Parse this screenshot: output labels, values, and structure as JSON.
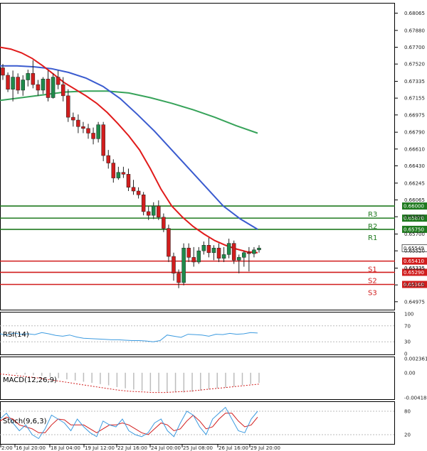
{
  "chart_data": {
    "type": "candlestick",
    "main": {
      "y_ticks": [
        "0.68065",
        "0.67880",
        "0.67700",
        "0.67520",
        "0.67335",
        "0.67155",
        "0.66975",
        "0.66790",
        "0.66610",
        "0.66430",
        "0.66245",
        "0.66065",
        "0.65885",
        "0.65700",
        "0.65520",
        "0.65335",
        "0.65155",
        "0.64975"
      ],
      "current_price": "0.65549",
      "ylim": [
        0.6489,
        0.6816
      ],
      "candles": [
        [
          0.6748,
          0.6752,
          0.6735,
          0.674
        ],
        [
          0.674,
          0.6743,
          0.6722,
          0.6725
        ],
        [
          0.6725,
          0.6745,
          0.6712,
          0.6738
        ],
        [
          0.6738,
          0.6742,
          0.672,
          0.6724
        ],
        [
          0.6724,
          0.674,
          0.6718,
          0.6735
        ],
        [
          0.6735,
          0.6746,
          0.6728,
          0.6742
        ],
        [
          0.6742,
          0.6756,
          0.6726,
          0.673
        ],
        [
          0.673,
          0.6735,
          0.6718,
          0.6724
        ],
        [
          0.6724,
          0.6738,
          0.672,
          0.6736
        ],
        [
          0.6736,
          0.6745,
          0.6712,
          0.6716
        ],
        [
          0.6716,
          0.6742,
          0.6715,
          0.6738
        ],
        [
          0.6738,
          0.6745,
          0.6725,
          0.673
        ],
        [
          0.673,
          0.6738,
          0.6712,
          0.6718
        ],
        [
          0.6718,
          0.6725,
          0.669,
          0.6695
        ],
        [
          0.6695,
          0.67,
          0.6685,
          0.6692
        ],
        [
          0.6692,
          0.6698,
          0.6678,
          0.6685
        ],
        [
          0.6685,
          0.669,
          0.6678,
          0.6683
        ],
        [
          0.6683,
          0.6688,
          0.6672,
          0.6678
        ],
        [
          0.6678,
          0.6684,
          0.6666,
          0.6672
        ],
        [
          0.6672,
          0.669,
          0.6668,
          0.6687
        ],
        [
          0.6687,
          0.669,
          0.6648,
          0.6654
        ],
        [
          0.6654,
          0.666,
          0.664,
          0.6646
        ],
        [
          0.6646,
          0.665,
          0.6625,
          0.663
        ],
        [
          0.663,
          0.6642,
          0.6628,
          0.6636
        ],
        [
          0.6636,
          0.6642,
          0.663,
          0.6634
        ],
        [
          0.6634,
          0.664,
          0.6616,
          0.662
        ],
        [
          0.662,
          0.6628,
          0.6612,
          0.6616
        ],
        [
          0.6616,
          0.662,
          0.6608,
          0.6612
        ],
        [
          0.6612,
          0.6615,
          0.659,
          0.6594
        ],
        [
          0.6594,
          0.66,
          0.6585,
          0.659
        ],
        [
          0.659,
          0.6604,
          0.6586,
          0.66
        ],
        [
          0.66,
          0.6606,
          0.6585,
          0.6588
        ],
        [
          0.6588,
          0.6592,
          0.6572,
          0.6576
        ],
        [
          0.6576,
          0.658,
          0.654,
          0.6546
        ],
        [
          0.6546,
          0.655,
          0.652,
          0.6528
        ],
        [
          0.6528,
          0.6532,
          0.6512,
          0.6518
        ],
        [
          0.6518,
          0.656,
          0.6515,
          0.6555
        ],
        [
          0.6555,
          0.656,
          0.654,
          0.6545
        ],
        [
          0.6545,
          0.6556,
          0.6535,
          0.654
        ],
        [
          0.654,
          0.6556,
          0.6538,
          0.6552
        ],
        [
          0.6552,
          0.6562,
          0.6548,
          0.6558
        ],
        [
          0.6558,
          0.6566,
          0.6545,
          0.655
        ],
        [
          0.655,
          0.6558,
          0.6542,
          0.6555
        ],
        [
          0.6555,
          0.656,
          0.654,
          0.6544
        ],
        [
          0.6544,
          0.6556,
          0.654,
          0.6548
        ],
        [
          0.6548,
          0.6565,
          0.6544,
          0.656
        ],
        [
          0.656,
          0.6563,
          0.6538,
          0.6542
        ],
        [
          0.6542,
          0.6548,
          0.6528,
          0.6545
        ],
        [
          0.6545,
          0.6552,
          0.6535,
          0.655
        ],
        [
          0.655,
          0.6556,
          0.653,
          0.6549
        ],
        [
          0.6549,
          0.6556,
          0.6545,
          0.6553
        ],
        [
          0.6553,
          0.6558,
          0.655,
          0.6555
        ]
      ],
      "ma_red": [
        0.677,
        0.6768,
        0.6764,
        0.6758,
        0.675,
        0.6741,
        0.6732,
        0.6725,
        0.6718,
        0.671,
        0.67,
        0.6688,
        0.6675,
        0.666,
        0.664,
        0.6618,
        0.66,
        0.6588,
        0.6578,
        0.657,
        0.6563,
        0.6558,
        0.6554,
        0.6551,
        0.655
      ],
      "ma_blue": [
        0.675,
        0.675,
        0.6749,
        0.6747,
        0.6743,
        0.6737,
        0.6728,
        0.6715,
        0.6698,
        0.668,
        0.666,
        0.664,
        0.662,
        0.66,
        0.6586,
        0.6575
      ],
      "ma_green": [
        0.6713,
        0.6716,
        0.6719,
        0.6722,
        0.6723,
        0.6723,
        0.6721,
        0.6716,
        0.671,
        0.6703,
        0.6695,
        0.6686,
        0.6678
      ],
      "levels": [
        {
          "name": "R3",
          "value": 0.66,
          "tag": "0.66000",
          "color": "#1f7a1f"
        },
        {
          "name": "R2",
          "value": 0.6587,
          "tag": "0.65870",
          "color": "#1f7a1f"
        },
        {
          "name": "R1",
          "value": 0.6575,
          "tag": "0.65750",
          "color": "#1f7a1f"
        },
        {
          "name": "S1",
          "value": 0.6541,
          "tag": "0.65410",
          "color": "#d11d1d"
        },
        {
          "name": "S2",
          "value": 0.6529,
          "tag": "0.65290",
          "color": "#d11d1d"
        },
        {
          "name": "S3",
          "value": 0.6516,
          "tag": "0.65160",
          "color": "#d11d1d"
        }
      ],
      "extra_tick": "0.65335"
    },
    "rsi": {
      "label": "RSI(14)",
      "ticks": [
        "100",
        "70",
        "30",
        "0"
      ],
      "values": [
        50,
        47,
        52,
        49,
        50,
        48,
        53,
        50,
        46,
        44,
        47,
        42,
        39,
        38,
        37,
        36,
        35,
        35,
        34,
        33,
        33,
        32,
        30,
        33,
        47,
        44,
        41,
        49,
        48,
        47,
        44,
        49,
        48,
        51,
        49,
        50,
        53,
        52
      ]
    },
    "macd": {
      "label": "MACD(12,26,9)",
      "ticks": [
        "0.002361",
        "0.00",
        "-0.004182"
      ],
      "hist": [
        0.0,
        -0.0001,
        -0.0002,
        -0.0003,
        -0.0004,
        -0.0005,
        -0.0007,
        -0.0009,
        -0.0011,
        -0.0013,
        -0.0015,
        -0.0017,
        -0.0019,
        -0.0021,
        -0.0024,
        -0.0026,
        -0.0028,
        -0.003,
        -0.0031,
        -0.0032,
        -0.0033,
        -0.0033,
        -0.0033,
        -0.0032,
        -0.003,
        -0.0028,
        -0.0026,
        -0.0025,
        -0.0023,
        -0.0021,
        -0.0019,
        -0.0017
      ],
      "signal": [
        -0.0002,
        -0.0004,
        -0.0006,
        -0.0008,
        -0.0011,
        -0.0014,
        -0.0017,
        -0.002,
        -0.0023,
        -0.0026,
        -0.0029,
        -0.0031,
        -0.0032,
        -0.0033,
        -0.0033,
        -0.0032,
        -0.0031,
        -0.0029,
        -0.0027,
        -0.0025,
        -0.0023,
        -0.0021,
        -0.0019
      ]
    },
    "stoch": {
      "label": "Stoch(9,6,3)",
      "ticks": [
        "80",
        "20"
      ],
      "k": [
        60,
        75,
        50,
        30,
        45,
        20,
        10,
        35,
        70,
        60,
        50,
        30,
        60,
        40,
        25,
        15,
        55,
        45,
        40,
        60,
        30,
        20,
        15,
        25,
        50,
        60,
        30,
        15,
        50,
        80,
        70,
        40,
        20,
        60,
        75,
        90,
        60,
        30,
        25,
        60,
        80
      ],
      "d": [
        55,
        65,
        60,
        45,
        40,
        35,
        25,
        25,
        45,
        60,
        58,
        45,
        45,
        45,
        35,
        25,
        35,
        45,
        45,
        50,
        45,
        35,
        25,
        20,
        35,
        50,
        45,
        30,
        35,
        55,
        70,
        55,
        35,
        40,
        60,
        75,
        75,
        55,
        40,
        45,
        65
      ]
    },
    "x_ticks": [
      "2:00",
      "16 Jul 20:00",
      "18 Jul 04:00",
      "19 Jul 12:00",
      "22 Jul 16:00",
      "24 Jul 00:00",
      "25 Jul 08:00",
      "26 Jul 16:00",
      "29 Jul 20:00"
    ],
    "colors": {
      "up": "#1e8a4a",
      "down": "#d11d1d",
      "ma_red": "#e11b1b",
      "ma_blue": "#3a5bcf",
      "ma_green": "#37a35a",
      "indicator": "#3d9be0",
      "signal": "#d11d1d",
      "hist": "#bdbdbd",
      "level_label_red": "#d11d1d",
      "level_label_green": "#1f7a1f"
    }
  }
}
